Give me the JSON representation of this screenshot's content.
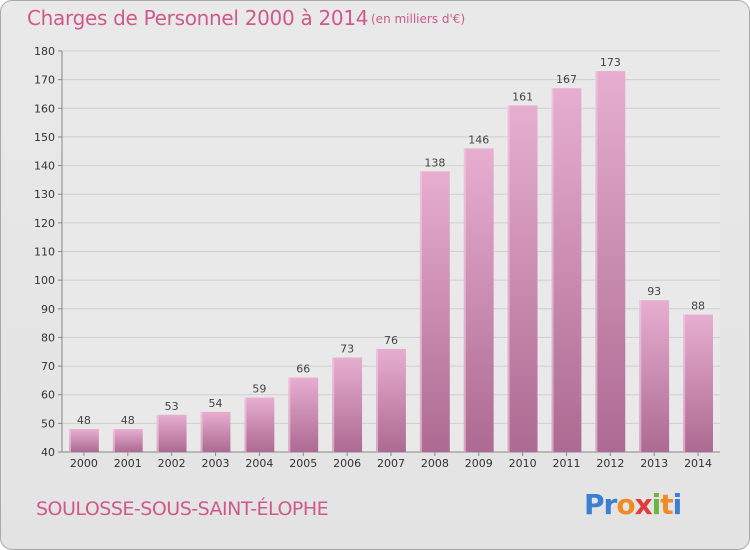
{
  "header": {
    "title": "Charges de Personnel 2000 à 2014",
    "unit": "(en milliers d'€)"
  },
  "footer": {
    "commune": "SOULOSSE-SOUS-SAINT-ÉLOPHE",
    "logo": "Proxiti"
  },
  "colors": {
    "accent": "#ce5a8a",
    "bar_light": "#e4a8cb",
    "bar_dark": "#b06a92"
  },
  "chart_data": {
    "type": "bar",
    "title": "Charges de Personnel 2000 à 2014",
    "subtitle": "(en milliers d'€)",
    "xlabel": "",
    "ylabel": "",
    "categories": [
      "2000",
      "2001",
      "2002",
      "2003",
      "2004",
      "2005",
      "2006",
      "2007",
      "2008",
      "2009",
      "2010",
      "2011",
      "2012",
      "2013",
      "2014"
    ],
    "values": [
      48,
      48,
      53,
      54,
      59,
      66,
      73,
      76,
      138,
      146,
      161,
      167,
      173,
      93,
      88
    ],
    "ylim": [
      40,
      180
    ],
    "yticks": [
      40,
      50,
      60,
      70,
      80,
      90,
      100,
      110,
      120,
      130,
      140,
      150,
      160,
      170,
      180
    ],
    "grid": true,
    "legend": "none"
  }
}
